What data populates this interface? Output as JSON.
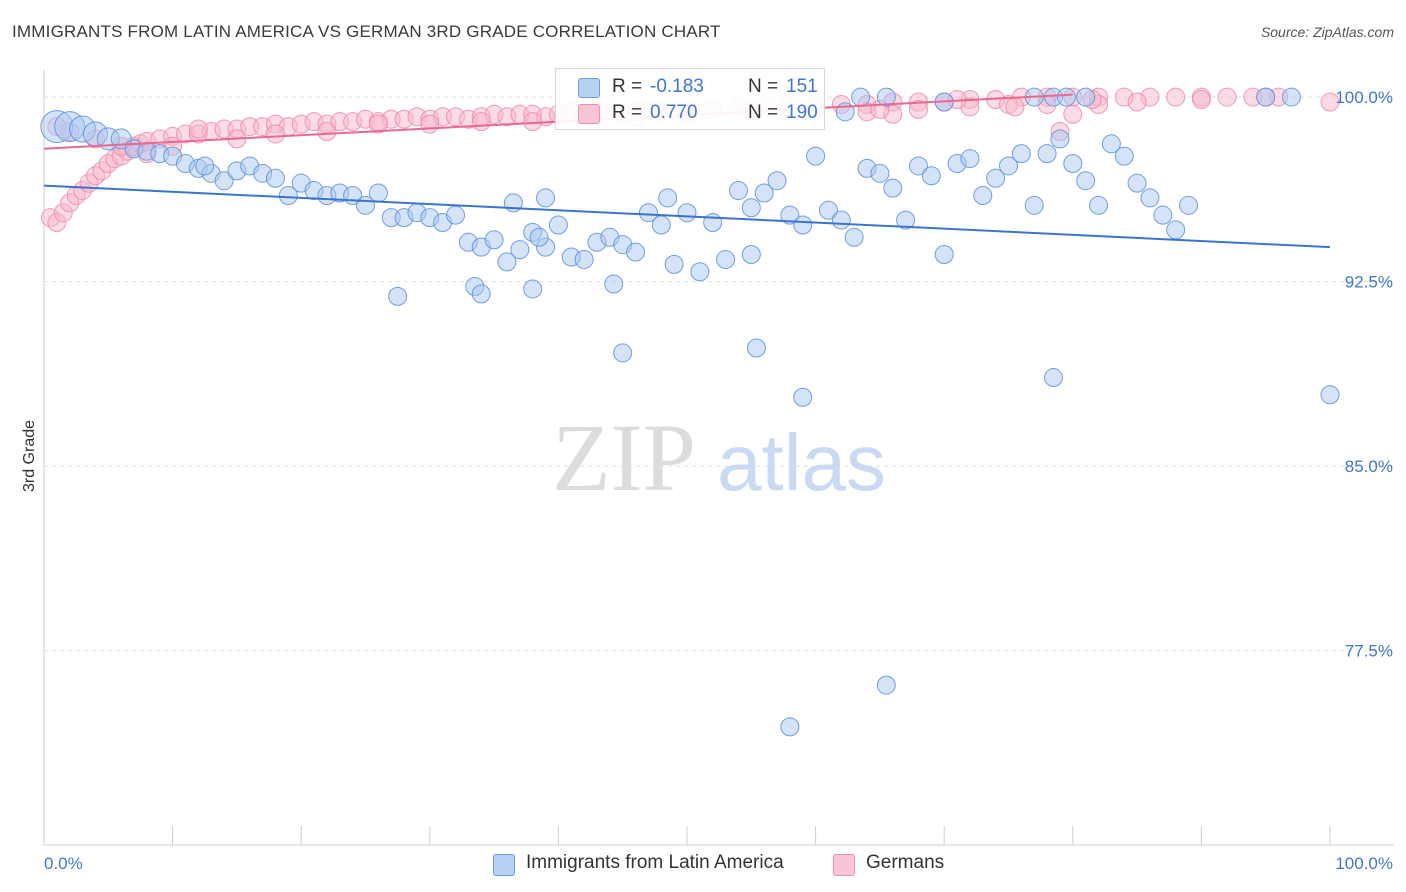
{
  "title": "IMMIGRANTS FROM LATIN AMERICA VS GERMAN 3RD GRADE CORRELATION CHART",
  "source": "Source: ZipAtlas.com",
  "watermark": {
    "zip": "ZIP",
    "atlas": "atlas"
  },
  "legend": {
    "r_label": "R =",
    "n_label": "N =",
    "series1": {
      "r": "-0.183",
      "n": "151"
    },
    "series2": {
      "r": "0.770",
      "n": "190"
    }
  },
  "bottom_legend": {
    "series1": "Immigrants from Latin America",
    "series2": "Germans"
  },
  "colors": {
    "blue_fill": "#a9c8f2",
    "blue_stroke": "#5b8fd8",
    "blue_line": "#3a74cf",
    "pink_fill": "#f7b8cc",
    "pink_stroke": "#ec8aa9",
    "pink_line": "#e9698f",
    "axis_label": "#3f78d0",
    "grid": "#dddddd"
  },
  "chart_data": {
    "type": "scatter",
    "title": "IMMIGRANTS FROM LATIN AMERICA VS GERMAN 3RD GRADE CORRELATION CHART",
    "xlabel": "",
    "ylabel": "3rd Grade",
    "xlim": [
      0,
      100
    ],
    "ylim": [
      69.6,
      101.1
    ],
    "x_tick_labels": [
      "0.0%",
      "100.0%"
    ],
    "y_ticks": [
      100.0,
      92.5,
      85.0,
      77.5
    ],
    "y_tick_labels": [
      "100.0%",
      "92.5%",
      "85.0%",
      "77.5%"
    ],
    "series": [
      {
        "name": "Immigrants from Latin America",
        "r": -0.183,
        "n": 151,
        "trend": {
          "x": [
            0,
            100
          ],
          "y": [
            96.4,
            93.9
          ]
        },
        "points": [
          [
            1,
            98.8,
            16
          ],
          [
            2,
            98.8,
            15
          ],
          [
            3,
            98.7,
            13
          ],
          [
            4,
            98.5,
            12
          ],
          [
            5,
            98.3,
            11
          ],
          [
            6,
            98.3,
            10
          ],
          [
            7,
            97.9,
            9
          ],
          [
            8,
            97.8,
            9
          ],
          [
            9,
            97.7,
            9
          ],
          [
            10,
            97.6,
            9
          ],
          [
            11,
            97.3,
            9
          ],
          [
            12,
            97.1,
            9
          ],
          [
            13,
            96.9,
            9
          ],
          [
            14,
            96.6,
            9
          ],
          [
            12.5,
            97.2,
            9
          ],
          [
            15,
            97.0,
            9
          ],
          [
            16,
            97.2,
            9
          ],
          [
            17,
            96.9,
            9
          ],
          [
            18,
            96.7,
            9
          ],
          [
            19,
            96.0,
            9
          ],
          [
            20,
            96.5,
            9
          ],
          [
            21,
            96.2,
            9
          ],
          [
            22,
            96.0,
            9
          ],
          [
            23,
            96.1,
            9
          ],
          [
            24,
            96.0,
            9
          ],
          [
            25,
            95.6,
            9
          ],
          [
            26,
            96.1,
            9
          ],
          [
            27,
            95.1,
            9
          ],
          [
            28,
            95.1,
            9
          ],
          [
            29,
            95.3,
            9
          ],
          [
            30,
            95.1,
            9
          ],
          [
            31,
            94.9,
            9
          ],
          [
            32,
            95.2,
            9
          ],
          [
            33,
            94.1,
            9
          ],
          [
            34,
            93.9,
            9
          ],
          [
            35,
            94.2,
            9
          ],
          [
            36,
            93.3,
            9
          ],
          [
            37,
            93.8,
            9
          ],
          [
            38,
            94.5,
            9
          ],
          [
            39,
            93.9,
            9
          ],
          [
            40,
            94.8,
            9
          ],
          [
            41,
            93.5,
            9
          ],
          [
            42,
            93.4,
            9
          ],
          [
            43,
            94.1,
            9
          ],
          [
            44,
            94.3,
            9
          ],
          [
            45,
            94.0,
            9
          ],
          [
            46,
            93.7,
            9
          ],
          [
            47,
            95.3,
            9
          ],
          [
            48,
            94.8,
            9
          ],
          [
            49,
            93.2,
            9
          ],
          [
            50,
            95.3,
            9
          ],
          [
            51,
            92.9,
            9
          ],
          [
            52,
            94.9,
            9
          ],
          [
            53,
            93.4,
            9
          ],
          [
            54,
            96.2,
            9
          ],
          [
            55,
            95.5,
            9
          ],
          [
            56,
            96.1,
            9
          ],
          [
            57,
            96.6,
            9
          ],
          [
            58,
            95.2,
            9
          ],
          [
            59,
            94.8,
            9
          ],
          [
            60,
            97.6,
            9
          ],
          [
            61,
            95.4,
            9
          ],
          [
            62,
            95.0,
            9
          ],
          [
            63,
            94.3,
            9
          ],
          [
            64,
            97.1,
            9
          ],
          [
            65,
            96.9,
            9
          ],
          [
            66,
            96.3,
            9
          ],
          [
            67,
            95.0,
            9
          ],
          [
            68,
            97.2,
            9
          ],
          [
            69,
            96.8,
            9
          ],
          [
            70,
            93.6,
            9
          ],
          [
            71,
            97.3,
            9
          ],
          [
            72,
            97.5,
            9
          ],
          [
            73,
            96.0,
            9
          ],
          [
            74,
            96.7,
            9
          ],
          [
            75,
            97.2,
            9
          ],
          [
            76,
            97.7,
            9
          ],
          [
            77,
            95.6,
            9
          ],
          [
            78,
            97.7,
            9
          ],
          [
            79,
            98.3,
            9
          ],
          [
            80,
            97.3,
            9
          ],
          [
            81,
            96.6,
            9
          ],
          [
            82,
            95.6,
            9
          ],
          [
            83,
            98.1,
            9
          ],
          [
            84,
            97.6,
            9
          ],
          [
            85,
            96.5,
            9
          ],
          [
            86,
            95.9,
            9
          ],
          [
            87,
            95.2,
            9
          ],
          [
            88,
            94.6,
            9
          ],
          [
            89,
            95.6,
            9
          ],
          [
            36.5,
            95.7,
            9
          ],
          [
            55,
            93.6,
            9
          ],
          [
            39,
            95.9,
            9
          ],
          [
            48.5,
            95.9,
            9
          ],
          [
            38.5,
            94.3,
            9
          ],
          [
            27.5,
            91.9,
            9
          ],
          [
            33.5,
            92.3,
            9
          ],
          [
            34,
            92.0,
            9
          ],
          [
            38,
            92.2,
            9
          ],
          [
            44.3,
            92.4,
            9
          ],
          [
            45,
            89.6,
            9
          ],
          [
            55.4,
            89.8,
            9
          ],
          [
            59,
            87.8,
            9
          ],
          [
            78.5,
            88.6,
            9
          ],
          [
            100,
            87.9,
            9
          ],
          [
            65.5,
            76.1,
            9
          ],
          [
            58,
            74.4,
            9
          ],
          [
            63.5,
            100.0,
            9
          ],
          [
            65.5,
            100.0,
            9
          ],
          [
            70,
            99.8,
            9
          ],
          [
            77,
            100.0,
            9
          ],
          [
            78.5,
            100.0,
            9
          ],
          [
            79.5,
            100.0,
            9
          ],
          [
            81,
            100.0,
            9
          ],
          [
            95,
            100.0,
            9
          ],
          [
            97,
            100.0,
            9
          ],
          [
            62.3,
            99.4,
            9
          ]
        ]
      },
      {
        "name": "Germans",
        "r": 0.77,
        "n": 190,
        "trend": {
          "x": [
            0,
            80
          ],
          "y": [
            97.9,
            100.1
          ]
        },
        "points": [
          [
            0.5,
            95.1,
            9
          ],
          [
            1,
            94.9,
            9
          ],
          [
            1.5,
            95.3,
            9
          ],
          [
            2,
            95.7,
            9
          ],
          [
            2.5,
            96.0,
            9
          ],
          [
            3,
            96.2,
            9
          ],
          [
            3.5,
            96.5,
            9
          ],
          [
            4,
            96.8,
            9
          ],
          [
            4.5,
            97.0,
            9
          ],
          [
            5,
            97.3,
            9
          ],
          [
            5.5,
            97.5,
            9
          ],
          [
            6,
            97.6,
            9
          ],
          [
            6.5,
            97.8,
            9
          ],
          [
            7,
            98.0,
            9
          ],
          [
            7.5,
            98.1,
            9
          ],
          [
            8,
            98.2,
            9
          ],
          [
            9,
            98.3,
            9
          ],
          [
            10,
            98.4,
            9
          ],
          [
            11,
            98.5,
            9
          ],
          [
            12,
            98.5,
            9
          ],
          [
            13,
            98.6,
            9
          ],
          [
            14,
            98.7,
            9
          ],
          [
            15,
            98.7,
            9
          ],
          [
            16,
            98.8,
            9
          ],
          [
            17,
            98.8,
            9
          ],
          [
            18,
            98.9,
            9
          ],
          [
            19,
            98.8,
            9
          ],
          [
            20,
            98.9,
            9
          ],
          [
            21,
            99.0,
            9
          ],
          [
            22,
            98.9,
            9
          ],
          [
            23,
            99.0,
            9
          ],
          [
            24,
            99.0,
            9
          ],
          [
            25,
            99.1,
            9
          ],
          [
            26,
            99.0,
            9
          ],
          [
            27,
            99.1,
            9
          ],
          [
            28,
            99.1,
            9
          ],
          [
            29,
            99.2,
            9
          ],
          [
            30,
            99.1,
            9
          ],
          [
            31,
            99.2,
            9
          ],
          [
            32,
            99.2,
            9
          ],
          [
            33,
            99.1,
            9
          ],
          [
            34,
            99.2,
            9
          ],
          [
            35,
            99.3,
            9
          ],
          [
            36,
            99.2,
            9
          ],
          [
            37,
            99.3,
            9
          ],
          [
            38,
            99.3,
            9
          ],
          [
            39,
            99.2,
            9
          ],
          [
            40,
            99.3,
            9
          ],
          [
            41,
            99.4,
            9
          ],
          [
            42,
            99.3,
            9
          ],
          [
            43,
            99.4,
            9
          ],
          [
            44,
            99.4,
            9
          ],
          [
            45,
            99.3,
            9
          ],
          [
            46,
            99.4,
            9
          ],
          [
            47,
            99.5,
            9
          ],
          [
            48,
            99.4,
            9
          ],
          [
            49,
            99.5,
            9
          ],
          [
            50,
            99.5,
            9
          ],
          [
            52,
            99.5,
            9
          ],
          [
            54,
            99.6,
            9
          ],
          [
            56,
            99.6,
            9
          ],
          [
            58,
            99.6,
            9
          ],
          [
            60,
            99.7,
            9
          ],
          [
            62,
            99.7,
            9
          ],
          [
            64,
            99.7,
            9
          ],
          [
            66,
            99.8,
            9
          ],
          [
            68,
            99.8,
            9
          ],
          [
            70,
            99.8,
            9
          ],
          [
            72,
            99.9,
            9
          ],
          [
            74,
            99.9,
            9
          ],
          [
            76,
            100.0,
            9
          ],
          [
            78,
            100.0,
            9
          ],
          [
            80,
            100.0,
            9
          ],
          [
            82,
            100.0,
            9
          ],
          [
            84,
            100.0,
            9
          ],
          [
            86,
            100.0,
            9
          ],
          [
            88,
            100.0,
            9
          ],
          [
            90,
            100.0,
            9
          ],
          [
            92,
            100.0,
            9
          ],
          [
            94,
            100.0,
            9
          ],
          [
            96,
            100.0,
            9
          ],
          [
            100,
            99.8,
            9
          ],
          [
            1,
            98.8,
            9
          ],
          [
            2,
            98.6,
            9
          ],
          [
            4,
            98.3,
            9
          ],
          [
            6,
            98.0,
            9
          ],
          [
            8,
            97.7,
            9
          ],
          [
            10,
            98.0,
            9
          ],
          [
            12,
            98.7,
            9
          ],
          [
            15,
            98.3,
            9
          ],
          [
            18,
            98.5,
            9
          ],
          [
            22,
            98.6,
            9
          ],
          [
            26,
            98.9,
            9
          ],
          [
            30,
            98.9,
            9
          ],
          [
            34,
            99.0,
            9
          ],
          [
            38,
            99.0,
            9
          ],
          [
            42,
            99.2,
            9
          ],
          [
            46,
            99.2,
            9
          ],
          [
            50,
            99.3,
            9
          ],
          [
            55,
            99.4,
            9
          ],
          [
            60,
            99.5,
            9
          ],
          [
            64,
            99.4,
            9
          ],
          [
            66,
            99.3,
            9
          ],
          [
            68,
            99.5,
            9
          ],
          [
            72,
            99.6,
            9
          ],
          [
            75,
            99.7,
            9
          ],
          [
            78,
            99.7,
            9
          ],
          [
            80,
            99.3,
            9
          ],
          [
            82,
            99.7,
            9
          ],
          [
            85,
            99.8,
            9
          ],
          [
            90,
            99.9,
            9
          ],
          [
            95,
            100.0,
            9
          ],
          [
            79,
            98.6,
            9
          ],
          [
            65,
            99.5,
            9
          ],
          [
            71,
            99.9,
            9
          ],
          [
            75.5,
            99.6,
            9
          ],
          [
            81.5,
            99.9,
            9
          ]
        ]
      }
    ]
  }
}
